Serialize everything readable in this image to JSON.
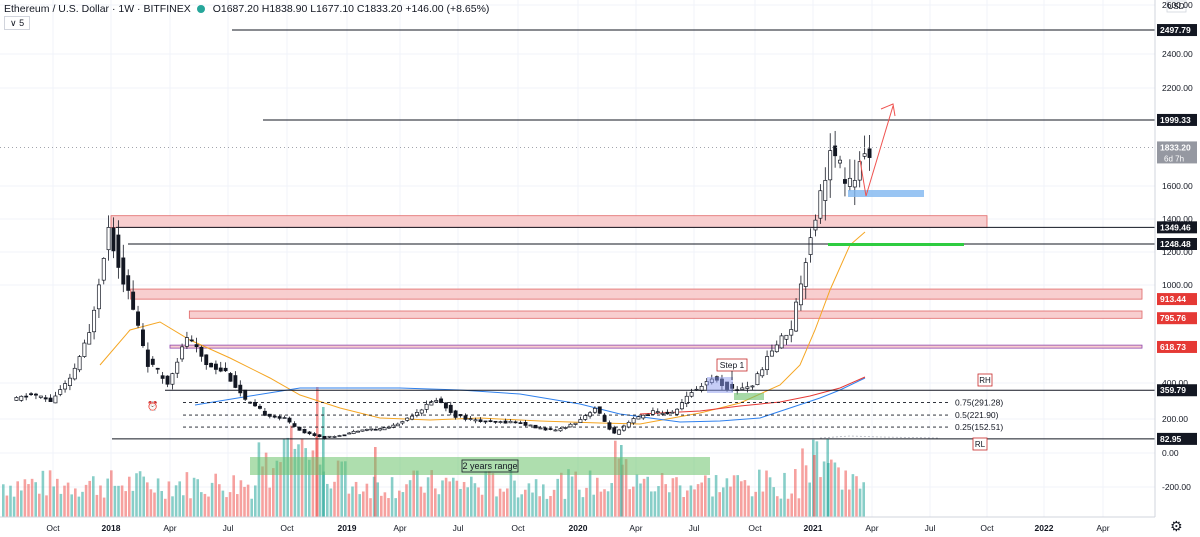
{
  "header": {
    "symbol": "Ethereum / U.S. Dollar · 1W · BITFINEX",
    "ohlc": "O1687.20  H1838.90  L1677.10  C1833.20  +146.00 (+8.65%)",
    "indicator_badge": "∨ 5"
  },
  "icons": [
    "link-icon",
    "alert-icon",
    "market-open-icon",
    "settings-icon",
    "alarm-clock-icon"
  ],
  "colors": {
    "up": "#26a69a",
    "down": "#ef5350",
    "zone_fill": "#f7c6c7",
    "zone_edge": "#e06666",
    "ma_orange": "#f5a623",
    "ma_blue": "#2f80ed",
    "ma_red": "#e53935",
    "green_zone": "#6cc26c",
    "blue_zone": "#7fb7f0",
    "purple_line": "#8e44ad"
  },
  "chart_data": {
    "type": "candlestick",
    "title": "Ethereum / U.S. Dollar · 1W · BITFINEX",
    "currency_label": "USD",
    "y_ticks": [
      "2600.00",
      "2400.00",
      "2200.00",
      "1600.00",
      "1400.00",
      "1200.00",
      "1000.00",
      "400.00",
      "200.00",
      "0.00",
      "-200.00"
    ],
    "x_ticks": [
      "Oct",
      "2018",
      "Apr",
      "Jul",
      "Oct",
      "2019",
      "Apr",
      "Jul",
      "Oct",
      "2020",
      "Apr",
      "Jul",
      "Oct",
      "2021",
      "Apr",
      "Jul",
      "Oct",
      "2022",
      "Apr"
    ],
    "price_levels": [
      {
        "value": 2497.79,
        "style": "solid",
        "color": "#131722"
      },
      {
        "value": 1999.33,
        "style": "solid",
        "color": "#131722"
      },
      {
        "value": 1833.2,
        "style": "current",
        "color": "#9598a1",
        "sub": "6d 7h"
      },
      {
        "value": 1349.46,
        "style": "solid",
        "color": "#131722"
      },
      {
        "value": 1248.48,
        "style": "solid",
        "color": "#131722"
      },
      {
        "value": 913.44,
        "style": "zone",
        "color": "#e53935"
      },
      {
        "value": 795.76,
        "style": "zone",
        "color": "#e53935"
      },
      {
        "value": 618.73,
        "style": "zone",
        "color": "#e53935"
      },
      {
        "value": 359.79,
        "style": "solid",
        "color": "#131722"
      },
      {
        "value": 82.95,
        "style": "solid",
        "color": "#131722"
      }
    ],
    "zones": [
      {
        "low": 1349,
        "high": 1420,
        "from": "2018-01",
        "to": "2021-10"
      },
      {
        "low": 913,
        "high": 975,
        "from": "2018-02",
        "to": "2022-06"
      },
      {
        "low": 795,
        "high": 840,
        "from": "2018-05",
        "to": "2022-06"
      },
      {
        "low": 618,
        "high": 630,
        "from": "2018-04",
        "to": "2022-06"
      }
    ],
    "fib_levels": [
      {
        "label": "0.75(291.28)",
        "value": 291.28
      },
      {
        "label": "0.5(221.90)",
        "value": 221.9
      },
      {
        "label": "0.25(152.51)",
        "value": 152.51
      }
    ],
    "annotations": [
      {
        "text": "Step 1"
      },
      {
        "text": "RH"
      },
      {
        "text": "RL"
      },
      {
        "text": "2 years range"
      }
    ],
    "price_path": [
      {
        "t": "2017-08",
        "p": 300
      },
      {
        "t": "2017-09",
        "p": 340
      },
      {
        "t": "2017-10",
        "p": 300
      },
      {
        "t": "2017-11",
        "p": 420
      },
      {
        "t": "2017-12",
        "p": 700
      },
      {
        "t": "2018-01",
        "p": 1350
      },
      {
        "t": "2018-02",
        "p": 950
      },
      {
        "t": "2018-03",
        "p": 530
      },
      {
        "t": "2018-04",
        "p": 400
      },
      {
        "t": "2018-05",
        "p": 680
      },
      {
        "t": "2018-06",
        "p": 520
      },
      {
        "t": "2018-07",
        "p": 470
      },
      {
        "t": "2018-08",
        "p": 300
      },
      {
        "t": "2018-09",
        "p": 230
      },
      {
        "t": "2018-10",
        "p": 200
      },
      {
        "t": "2018-11",
        "p": 120
      },
      {
        "t": "2018-12",
        "p": 90
      },
      {
        "t": "2019-01",
        "p": 110
      },
      {
        "t": "2019-02",
        "p": 140
      },
      {
        "t": "2019-03",
        "p": 140
      },
      {
        "t": "2019-04",
        "p": 170
      },
      {
        "t": "2019-05",
        "p": 240
      },
      {
        "t": "2019-06",
        "p": 310
      },
      {
        "t": "2019-07",
        "p": 220
      },
      {
        "t": "2019-08",
        "p": 190
      },
      {
        "t": "2019-09",
        "p": 180
      },
      {
        "t": "2019-10",
        "p": 185
      },
      {
        "t": "2019-11",
        "p": 150
      },
      {
        "t": "2019-12",
        "p": 130
      },
      {
        "t": "2020-01",
        "p": 180
      },
      {
        "t": "2020-02",
        "p": 260
      },
      {
        "t": "2020-03",
        "p": 110
      },
      {
        "t": "2020-04",
        "p": 200
      },
      {
        "t": "2020-05",
        "p": 240
      },
      {
        "t": "2020-06",
        "p": 230
      },
      {
        "t": "2020-07",
        "p": 350
      },
      {
        "t": "2020-08",
        "p": 430
      },
      {
        "t": "2020-09",
        "p": 360
      },
      {
        "t": "2020-10",
        "p": 390
      },
      {
        "t": "2020-11",
        "p": 600
      },
      {
        "t": "2020-12",
        "p": 740
      },
      {
        "t": "2021-01",
        "p": 1300
      },
      {
        "t": "2021-02",
        "p": 1800
      },
      {
        "t": "2021-03",
        "p": 1600
      },
      {
        "t": "2021-04",
        "p": 1833
      }
    ]
  }
}
